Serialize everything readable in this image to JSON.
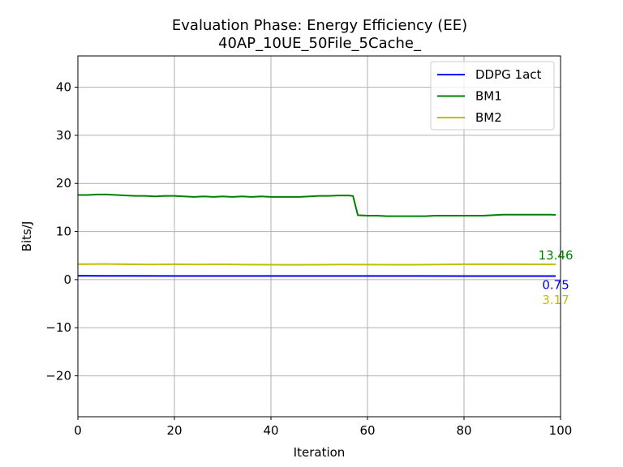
{
  "chart_data": {
    "type": "line",
    "title": "Evaluation Phase: Energy Efficiency (EE)",
    "subtitle": "40AP_10UE_50File_5Cache_",
    "xlabel": "Iteration",
    "ylabel": "Bits/J",
    "xlim": [
      0,
      100
    ],
    "ylim": [
      -28.5,
      46.5
    ],
    "xticks": [
      0,
      20,
      40,
      60,
      80,
      100
    ],
    "yticks": [
      -20,
      -10,
      0,
      10,
      20,
      30,
      40
    ],
    "grid": true,
    "legend_position": "top-right",
    "series": [
      {
        "name": "DDPG 1act",
        "color": "#0000ff",
        "x": [
          0,
          10,
          20,
          30,
          40,
          50,
          60,
          70,
          80,
          90,
          99
        ],
        "y": [
          0.8,
          0.78,
          0.77,
          0.77,
          0.76,
          0.76,
          0.76,
          0.76,
          0.75,
          0.75,
          0.75
        ],
        "end_label": "0.75"
      },
      {
        "name": "BM1",
        "color": "#008000",
        "x": [
          0,
          2,
          4,
          6,
          8,
          10,
          12,
          14,
          16,
          18,
          20,
          22,
          24,
          26,
          28,
          30,
          32,
          34,
          36,
          38,
          40,
          42,
          44,
          46,
          48,
          50,
          52,
          54,
          56,
          57,
          58,
          60,
          62,
          64,
          66,
          68,
          70,
          72,
          74,
          76,
          78,
          80,
          82,
          84,
          86,
          88,
          90,
          92,
          94,
          96,
          98,
          99
        ],
        "y": [
          17.6,
          17.6,
          17.7,
          17.7,
          17.6,
          17.5,
          17.4,
          17.4,
          17.3,
          17.4,
          17.4,
          17.3,
          17.2,
          17.3,
          17.2,
          17.3,
          17.2,
          17.3,
          17.2,
          17.3,
          17.2,
          17.2,
          17.2,
          17.2,
          17.3,
          17.4,
          17.4,
          17.5,
          17.5,
          17.4,
          13.4,
          13.3,
          13.3,
          13.2,
          13.2,
          13.2,
          13.2,
          13.2,
          13.3,
          13.3,
          13.3,
          13.3,
          13.3,
          13.3,
          13.4,
          13.5,
          13.5,
          13.5,
          13.5,
          13.5,
          13.5,
          13.46
        ],
        "end_label": "13.46"
      },
      {
        "name": "BM2",
        "color": "#bfbf00",
        "x": [
          0,
          5,
          10,
          15,
          20,
          25,
          30,
          35,
          40,
          45,
          50,
          55,
          60,
          65,
          70,
          75,
          80,
          85,
          90,
          95,
          99
        ],
        "y": [
          3.2,
          3.25,
          3.2,
          3.15,
          3.2,
          3.15,
          3.18,
          3.12,
          3.1,
          3.08,
          3.1,
          3.15,
          3.12,
          3.1,
          3.1,
          3.15,
          3.2,
          3.2,
          3.2,
          3.18,
          3.17
        ],
        "end_label": "3.17"
      }
    ]
  }
}
